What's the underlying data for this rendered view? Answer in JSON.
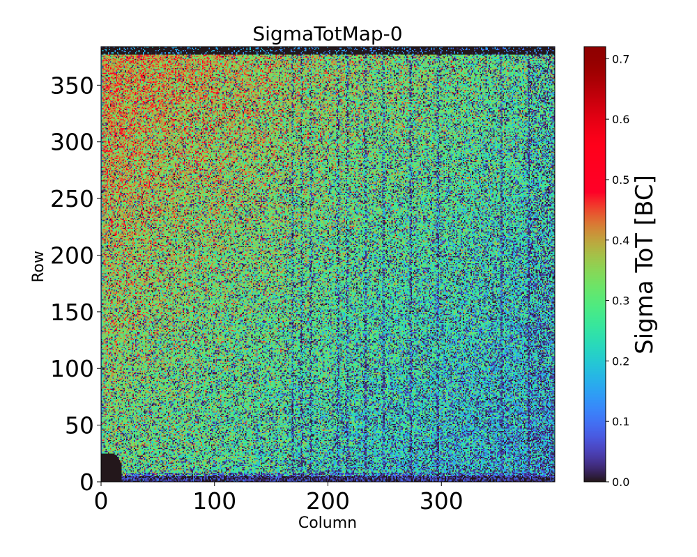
{
  "chart_data": {
    "type": "heatmap",
    "title": "SigmaTotMap-0",
    "xlabel": "Column",
    "ylabel": "Row",
    "xlim": [
      0,
      400
    ],
    "ylim": [
      0,
      384
    ],
    "x_ticks": [
      0,
      100,
      200,
      300
    ],
    "x_tick_labels": [
      "0",
      "100",
      "200",
      "300"
    ],
    "y_ticks": [
      0,
      50,
      100,
      150,
      200,
      250,
      300,
      350
    ],
    "y_tick_labels": [
      "0",
      "50",
      "100",
      "150",
      "200",
      "250",
      "300",
      "350"
    ],
    "grid": false,
    "colormap": "turbo",
    "colorbar": {
      "label": "Sigma ToT [BC]",
      "range": [
        0.0,
        0.72
      ],
      "ticks": [
        0.0,
        0.1,
        0.2,
        0.3,
        0.4,
        0.5,
        0.6,
        0.7
      ],
      "tick_labels": [
        "0.0",
        "0.1",
        "0.2",
        "0.3",
        "0.4",
        "0.5",
        "0.6",
        "0.7"
      ]
    },
    "value_pattern": {
      "columns": 400,
      "rows": 384,
      "typical_upper_left_value": 0.42,
      "typical_lower_right_value": 0.18,
      "noise_spread": 0.12,
      "dead_pixel_fraction_upper_left": 0.06,
      "dead_pixel_fraction_lower_right": 0.35,
      "dead_row_bands": [
        [
          0,
          5
        ],
        [
          377,
          384
        ]
      ],
      "dead_corner_column_max": 18,
      "dead_corner_row_max": 25,
      "weak_columns": [
        168,
        176,
        184,
        208,
        216,
        232,
        248,
        272,
        296,
        352,
        376
      ]
    }
  }
}
